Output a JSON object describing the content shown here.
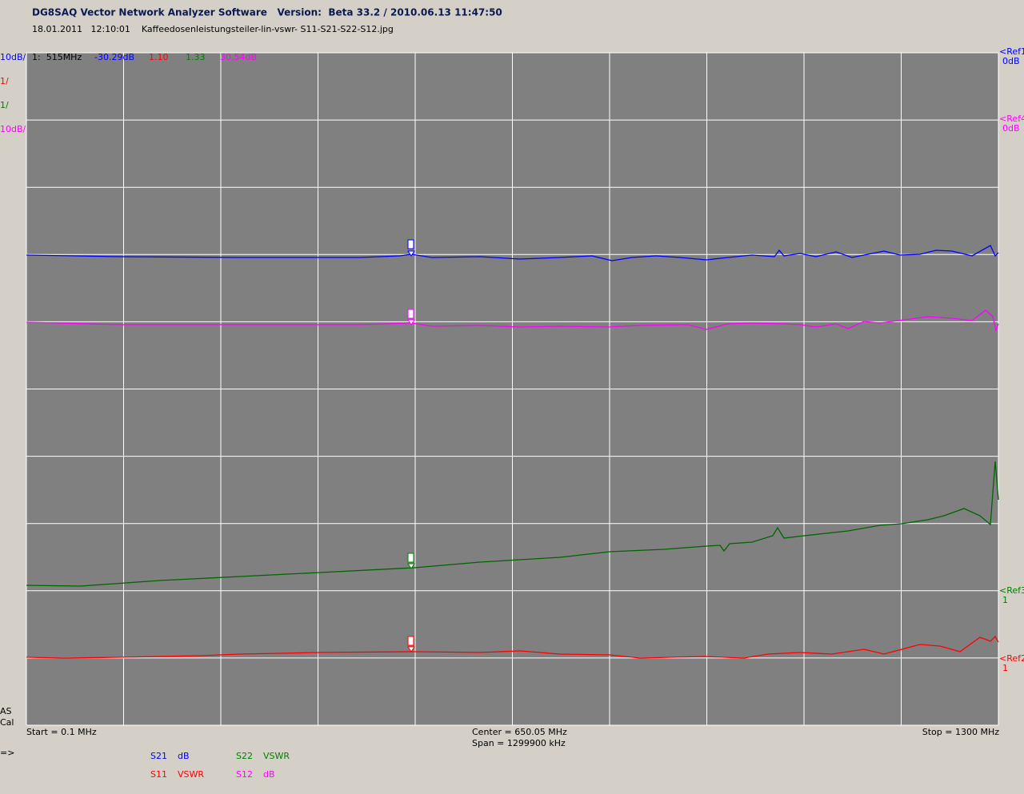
{
  "header": {
    "title": "DG8SAQ Vector Network Analyzer Software   Version:  Beta 33.2 / 2010.06.13 11:47:50",
    "subtitle": "18.01.2011   12:10:01    Kaffeedosenleistungsteiler-lin-vswr- S11-S21-S22-S12.jpg"
  },
  "scales": [
    {
      "text": "10dB/",
      "color": "#0000ff"
    },
    {
      "text": "1/",
      "color": "#ff0000"
    },
    {
      "text": "1/",
      "color": "#008000"
    },
    {
      "text": "10dB/",
      "color": "#ff00ff"
    }
  ],
  "marker": {
    "label": "1:  515MHz",
    "readings": [
      {
        "text": "-30.29dB",
        "color": "#0000ff"
      },
      {
        "text": "1.10",
        "color": "#ff0000"
      },
      {
        "text": "1.33",
        "color": "#008000"
      },
      {
        "text": "30.54dB",
        "color": "#ff00ff"
      }
    ]
  },
  "refs": [
    {
      "name": "<Ref1",
      "value": "0dB",
      "color": "#0000ff"
    },
    {
      "name": "<Ref4",
      "value": "0dB",
      "color": "#ff00ff"
    },
    {
      "name": "<Ref3",
      "value": "1",
      "color": "#008000"
    },
    {
      "name": "<Ref2",
      "value": "1",
      "color": "#ff0000"
    }
  ],
  "status": [
    "AS",
    "Cal"
  ],
  "axis": {
    "start": "Start = 0.1 MHz",
    "center": "Center = 650.05 MHz",
    "span": "Span = 1299900 kHz",
    "stop": "Stop = 1300 MHz"
  },
  "prompt": "=>",
  "legend": [
    {
      "param": "S21",
      "format": "dB",
      "color": "#0000ff"
    },
    {
      "param": "S22",
      "format": "VSWR",
      "color": "#008000"
    },
    {
      "param": "S11",
      "format": "VSWR",
      "color": "#ff0000"
    },
    {
      "param": "S12",
      "format": "dB",
      "color": "#ff00ff"
    }
  ]
}
